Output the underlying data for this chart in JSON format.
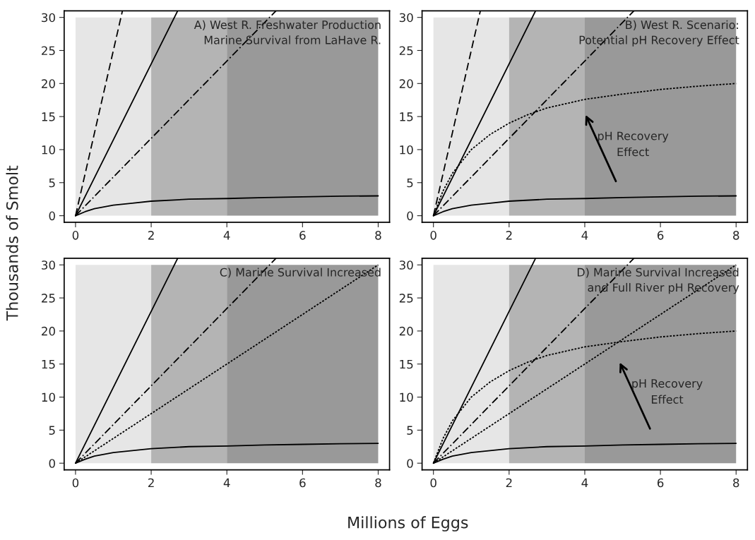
{
  "chart_data": [
    {
      "type": "line",
      "title": "A) West R. Freshwater Production\nMarine Survival from LaHave R.",
      "ylabel": "Thousands of Smolt",
      "xlim": [
        -0.3,
        8.3
      ],
      "ylim": [
        -1,
        31
      ],
      "xticks": [
        0,
        2,
        4,
        6,
        8
      ],
      "yticks": [
        0,
        5,
        10,
        15,
        20,
        25,
        30
      ],
      "grid": false,
      "legend": false,
      "bands": [
        {
          "axis": "x",
          "from": 0,
          "to": 2,
          "color": "#e6e6e6"
        },
        {
          "axis": "x",
          "from": 2,
          "to": 4,
          "color": "#b4b4b4"
        },
        {
          "axis": "x",
          "from": 4,
          "to": 8,
          "color": "#999999"
        }
      ],
      "series": [
        {
          "color": "#000000",
          "line_style": "dashed",
          "x": [
            0,
            1.24
          ],
          "values": [
            0,
            31
          ]
        },
        {
          "color": "#000000",
          "line_style": "solid",
          "x": [
            0,
            2.7
          ],
          "values": [
            0,
            31
          ]
        },
        {
          "color": "#000000",
          "line_style": "dashdot",
          "x": [
            0,
            5.3
          ],
          "values": [
            0,
            31
          ]
        },
        {
          "color": "#000000",
          "line_style": "solid",
          "x": [
            0,
            0.25,
            0.5,
            1,
            1.5,
            2,
            3,
            4,
            5,
            6,
            7,
            8
          ],
          "values": [
            0,
            0.6,
            1.07,
            1.6,
            1.9,
            2.2,
            2.5,
            2.6,
            2.75,
            2.85,
            2.95,
            3.0
          ]
        }
      ]
    },
    {
      "type": "line",
      "title": "B) West R. Scenario:\nPotential pH Recovery Effect",
      "xlim": [
        -0.3,
        8.3
      ],
      "ylim": [
        -1,
        31
      ],
      "xticks": [
        0,
        2,
        4,
        6,
        8
      ],
      "yticks": [
        0,
        5,
        10,
        15,
        20,
        25,
        30
      ],
      "grid": false,
      "legend": false,
      "annotations": [
        "pH Recovery\nEffect"
      ],
      "bands": [
        {
          "axis": "x",
          "from": 0,
          "to": 2,
          "color": "#e6e6e6"
        },
        {
          "axis": "x",
          "from": 2,
          "to": 4,
          "color": "#b4b4b4"
        },
        {
          "axis": "x",
          "from": 4,
          "to": 8,
          "color": "#999999"
        }
      ],
      "series": [
        {
          "color": "#000000",
          "line_style": "dashed",
          "x": [
            0,
            1.24
          ],
          "values": [
            0,
            31
          ]
        },
        {
          "color": "#000000",
          "line_style": "solid",
          "x": [
            0,
            2.7
          ],
          "values": [
            0,
            31
          ]
        },
        {
          "color": "#000000",
          "line_style": "dashdot",
          "x": [
            0,
            5.3
          ],
          "values": [
            0,
            31
          ]
        },
        {
          "color": "#000000",
          "line_style": "solid",
          "x": [
            0,
            0.25,
            0.5,
            1,
            1.5,
            2,
            3,
            4,
            5,
            6,
            7,
            8
          ],
          "values": [
            0,
            0.6,
            1.07,
            1.6,
            1.9,
            2.2,
            2.5,
            2.6,
            2.75,
            2.85,
            2.95,
            3.0
          ]
        },
        {
          "color": "#000000",
          "line_style": "dotted",
          "x": [
            0,
            0.25,
            0.5,
            1,
            1.5,
            2,
            2.5,
            3,
            4,
            5,
            6,
            7,
            8
          ],
          "values": [
            0,
            3.7,
            6.4,
            10,
            12.3,
            14,
            15.3,
            16.3,
            17.6,
            18.4,
            19.1,
            19.6,
            20
          ]
        }
      ]
    },
    {
      "type": "line",
      "title": "C) Marine Survival Increased",
      "xlabel": "Millions of Eggs",
      "xlim": [
        -0.3,
        8.3
      ],
      "ylim": [
        -1,
        31
      ],
      "xticks": [
        0,
        2,
        4,
        6,
        8
      ],
      "yticks": [
        0,
        5,
        10,
        15,
        20,
        25,
        30
      ],
      "grid": false,
      "legend": false,
      "bands": [
        {
          "axis": "x",
          "from": 0,
          "to": 2,
          "color": "#e6e6e6"
        },
        {
          "axis": "x",
          "from": 2,
          "to": 4,
          "color": "#b4b4b4"
        },
        {
          "axis": "x",
          "from": 4,
          "to": 8,
          "color": "#999999"
        }
      ],
      "series": [
        {
          "color": "#000000",
          "line_style": "solid",
          "x": [
            0,
            2.7
          ],
          "values": [
            0,
            31
          ]
        },
        {
          "color": "#000000",
          "line_style": "dashdot",
          "x": [
            0,
            5.3
          ],
          "values": [
            0,
            31
          ]
        },
        {
          "color": "#000000",
          "line_style": "dotted",
          "x": [
            0,
            8
          ],
          "values": [
            0,
            30
          ]
        },
        {
          "color": "#000000",
          "line_style": "solid",
          "x": [
            0,
            0.25,
            0.5,
            1,
            1.5,
            2,
            3,
            4,
            5,
            6,
            7,
            8
          ],
          "values": [
            0,
            0.6,
            1.07,
            1.6,
            1.9,
            2.2,
            2.5,
            2.6,
            2.75,
            2.85,
            2.95,
            3.0
          ]
        }
      ]
    },
    {
      "type": "line",
      "title": "D) Marine Survival Increased\nand Full River pH Recovery",
      "xlim": [
        -0.3,
        8.3
      ],
      "ylim": [
        -1,
        31
      ],
      "xticks": [
        0,
        2,
        4,
        6,
        8
      ],
      "yticks": [
        0,
        5,
        10,
        15,
        20,
        25,
        30
      ],
      "grid": false,
      "legend": false,
      "annotations": [
        "pH Recovery\nEffect"
      ],
      "bands": [
        {
          "axis": "x",
          "from": 0,
          "to": 2,
          "color": "#e6e6e6"
        },
        {
          "axis": "x",
          "from": 2,
          "to": 4,
          "color": "#b4b4b4"
        },
        {
          "axis": "x",
          "from": 4,
          "to": 8,
          "color": "#999999"
        }
      ],
      "series": [
        {
          "color": "#000000",
          "line_style": "solid",
          "x": [
            0,
            2.7
          ],
          "values": [
            0,
            31
          ]
        },
        {
          "color": "#000000",
          "line_style": "dashdot",
          "x": [
            0,
            5.3
          ],
          "values": [
            0,
            31
          ]
        },
        {
          "color": "#000000",
          "line_style": "dotted",
          "x": [
            0,
            8
          ],
          "values": [
            0,
            30
          ]
        },
        {
          "color": "#000000",
          "line_style": "solid",
          "x": [
            0,
            0.25,
            0.5,
            1,
            1.5,
            2,
            3,
            4,
            5,
            6,
            7,
            8
          ],
          "values": [
            0,
            0.6,
            1.07,
            1.6,
            1.9,
            2.2,
            2.5,
            2.6,
            2.75,
            2.85,
            2.95,
            3.0
          ]
        },
        {
          "color": "#000000",
          "line_style": "dotted",
          "x": [
            0,
            0.25,
            0.5,
            1,
            1.5,
            2,
            2.5,
            3,
            4,
            5,
            6,
            7,
            8
          ],
          "values": [
            0,
            3.7,
            6.4,
            10,
            12.3,
            14,
            15.3,
            16.3,
            17.6,
            18.4,
            19.1,
            19.6,
            20
          ]
        }
      ]
    }
  ]
}
